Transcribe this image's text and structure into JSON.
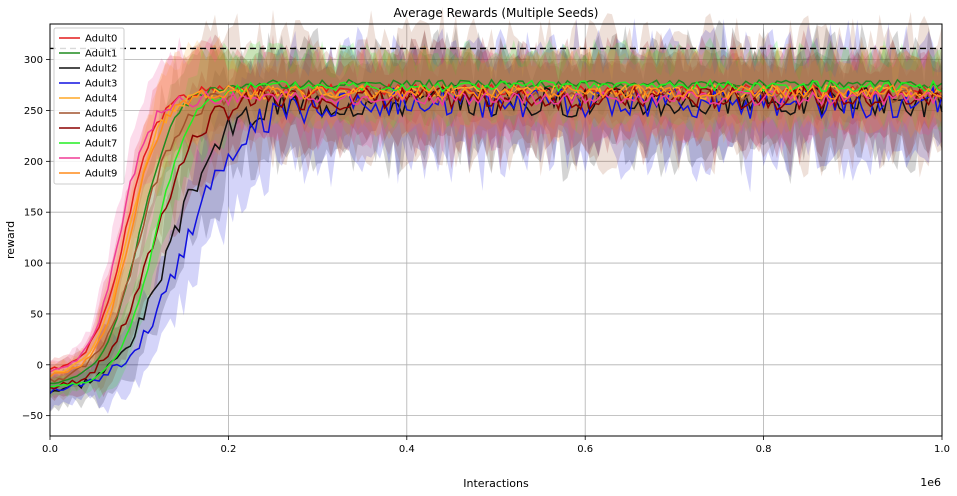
{
  "chart_data": {
    "type": "line",
    "title": "Average Rewards (Multiple Seeds)",
    "xlabel": "Interactions",
    "ylabel": "reward",
    "x_offset_label": "1e6",
    "xlim": [
      0,
      1.0
    ],
    "ylim": [
      -70,
      335
    ],
    "xticks": [
      0.0,
      0.2,
      0.4,
      0.6,
      0.8,
      1.0
    ],
    "xtick_labels": [
      "0.0",
      "0.2",
      "0.4",
      "0.6",
      "0.8",
      "1.0"
    ],
    "yticks": [
      -50,
      0,
      50,
      100,
      150,
      200,
      250,
      300
    ],
    "ytick_labels": [
      "−50",
      "0",
      "50",
      "100",
      "150",
      "200",
      "250",
      "300"
    ],
    "grid": true,
    "legend_position": "top-left",
    "reference_line": {
      "y": 311,
      "style": "dashed",
      "color": "#000000"
    },
    "series": [
      {
        "name": "Adult0",
        "color": "#e41a1c",
        "start": -7,
        "plateau": 270,
        "rise_mid": 0.085,
        "rise_width": 0.018,
        "noise": 4,
        "band": 22,
        "seed": 1
      },
      {
        "name": "Adult1",
        "color": "#1e8c1e",
        "start": -20,
        "plateau": 276,
        "rise_mid": 0.1,
        "rise_width": 0.02,
        "noise": 3,
        "band": 20,
        "seed": 2
      },
      {
        "name": "Adult2",
        "color": "#111111",
        "start": -28,
        "plateau": 259,
        "rise_mid": 0.135,
        "rise_width": 0.03,
        "noise": 11,
        "band": 40,
        "seed": 3
      },
      {
        "name": "Adult3",
        "color": "#1010e0",
        "start": -27,
        "plateau": 257,
        "rise_mid": 0.15,
        "rise_width": 0.032,
        "noise": 11,
        "band": 42,
        "seed": 4
      },
      {
        "name": "Adult4",
        "color": "#ffa726",
        "start": -10,
        "plateau": 268,
        "rise_mid": 0.088,
        "rise_width": 0.018,
        "noise": 5,
        "band": 25,
        "seed": 5
      },
      {
        "name": "Adult5",
        "color": "#a0522d",
        "start": -18,
        "plateau": 266,
        "rise_mid": 0.1,
        "rise_width": 0.022,
        "noise": 6,
        "band": 45,
        "seed": 6
      },
      {
        "name": "Adult6",
        "color": "#8b0000",
        "start": -26,
        "plateau": 262,
        "rise_mid": 0.115,
        "rise_width": 0.026,
        "noise": 8,
        "band": 35,
        "seed": 7
      },
      {
        "name": "Adult7",
        "color": "#22ee22",
        "start": -22,
        "plateau": 274,
        "rise_mid": 0.118,
        "rise_width": 0.02,
        "noise": 4,
        "band": 25,
        "seed": 8
      },
      {
        "name": "Adult8",
        "color": "#f03c96",
        "start": -8,
        "plateau": 262,
        "rise_mid": 0.078,
        "rise_width": 0.016,
        "noise": 5,
        "band": 28,
        "seed": 9
      },
      {
        "name": "Adult9",
        "color": "#ff8c1a",
        "start": -12,
        "plateau": 268,
        "rise_mid": 0.09,
        "rise_width": 0.018,
        "noise": 5,
        "band": 26,
        "seed": 10
      }
    ]
  }
}
